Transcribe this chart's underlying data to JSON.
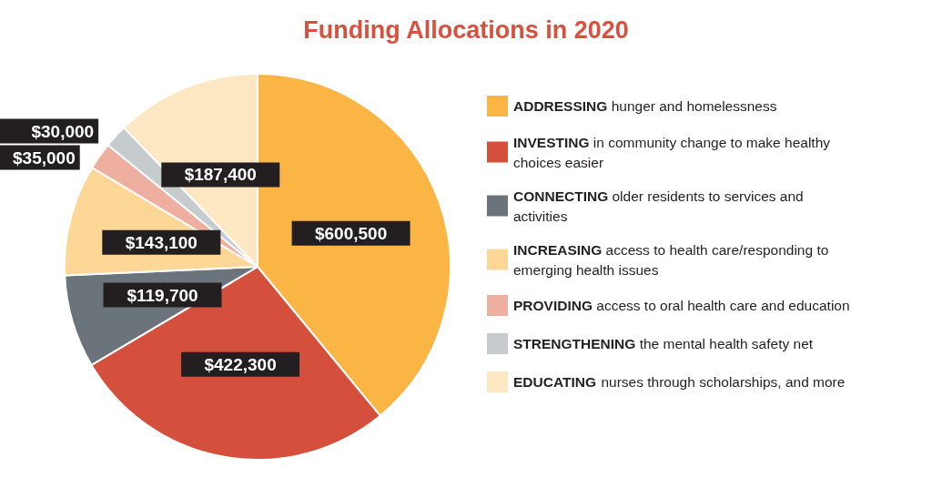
{
  "chart_data": {
    "type": "pie",
    "title": "Funding Allocations in 2020",
    "categories": [
      "ADDRESSING hunger and homelessness",
      "INVESTING in community change to make healthy choices easier",
      "CONNECTING older residents to services and activities",
      "INCREASING access to health care/responding to emerging health issues",
      "PROVIDING access to oral health care and education",
      "STRENGTHENING the mental health safety net",
      "EDUCATING nurses through scholarships, and more"
    ],
    "values": [
      600500,
      422300,
      119700,
      143100,
      35000,
      30000,
      187400
    ],
    "value_labels": [
      "$600,500",
      "$422,300",
      "$119,700",
      "$143,100",
      "$35,000",
      "$30,000",
      "$187,400"
    ],
    "colors": [
      "#fbb545",
      "#d4503c",
      "#6a747a",
      "#fdd796",
      "#eeafa0",
      "#c6cbce",
      "#fee7c3"
    ],
    "legend": "right"
  }
}
